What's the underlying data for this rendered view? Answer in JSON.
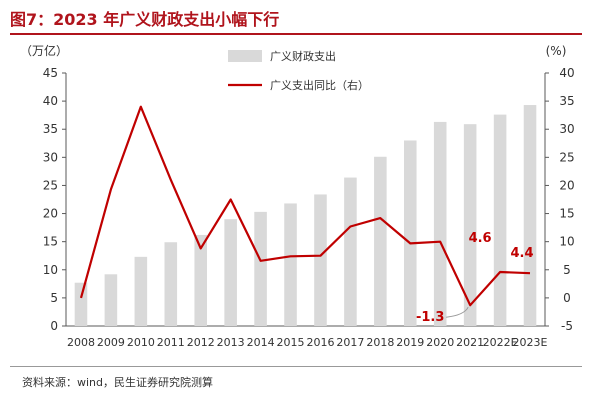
{
  "title": "图7：2023 年广义财政支出小幅下行",
  "source": "资料来源：wind，民生证券研究院测算",
  "colors": {
    "bar": "#d9d9d9",
    "line": "#c00000",
    "title": "#b0141c",
    "axis": "#595959"
  },
  "chart_data": {
    "type": "bar+line",
    "categories": [
      "2008",
      "2009",
      "2010",
      "2011",
      "2012",
      "2013",
      "2014",
      "2015",
      "2016",
      "2017",
      "2018",
      "2019",
      "2020",
      "2021",
      "2022E",
      "2023E"
    ],
    "series": [
      {
        "name": "广义财政支出",
        "type": "bar",
        "axis": "left",
        "values": [
          7.7,
          9.2,
          12.3,
          14.9,
          16.2,
          19.0,
          20.3,
          21.8,
          23.4,
          26.4,
          30.1,
          33.0,
          36.3,
          35.9,
          37.6,
          39.3
        ]
      },
      {
        "name": "广义支出同比（右）",
        "type": "line",
        "axis": "right",
        "values": [
          0.0,
          19.3,
          34.0,
          21.0,
          8.8,
          17.5,
          6.6,
          7.4,
          7.5,
          12.7,
          14.2,
          9.7,
          10.0,
          -1.3,
          4.6,
          4.4
        ]
      }
    ],
    "left_axis": {
      "label": "（万亿）",
      "ylim": [
        0,
        45
      ],
      "ticks": [
        "0",
        "5",
        "10",
        "15",
        "20",
        "25",
        "30",
        "35",
        "40",
        "45"
      ]
    },
    "right_axis": {
      "label": "(%)",
      "ylim": [
        -5,
        40
      ],
      "ticks": [
        "-5",
        "0",
        "5",
        "10",
        "15",
        "20",
        "25",
        "30",
        "35",
        "40"
      ]
    },
    "annotations": [
      {
        "text": "-1.3",
        "category": "2021"
      },
      {
        "text": "4.6",
        "category": "2022E"
      },
      {
        "text": "4.4",
        "category": "2023E"
      }
    ],
    "legend": "top-center",
    "grid": false
  }
}
